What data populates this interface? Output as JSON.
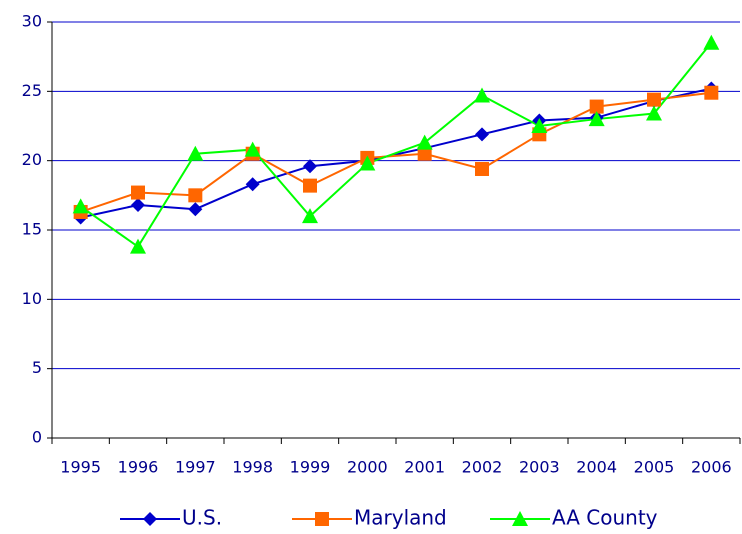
{
  "chart_data": {
    "type": "line",
    "categories": [
      "1995",
      "1996",
      "1997",
      "1998",
      "1999",
      "2000",
      "2001",
      "2002",
      "2003",
      "2004",
      "2005",
      "2006"
    ],
    "series": [
      {
        "name": "U.S.",
        "color": "#0000cc",
        "marker": "diamond",
        "values": [
          15.9,
          16.8,
          16.5,
          18.3,
          19.6,
          20.0,
          20.9,
          21.9,
          22.9,
          23.1,
          24.3,
          25.2
        ]
      },
      {
        "name": "Maryland",
        "color": "#ff6600",
        "marker": "square",
        "values": [
          16.3,
          17.7,
          17.5,
          20.5,
          18.2,
          20.2,
          20.5,
          19.4,
          21.9,
          23.9,
          24.4,
          24.9
        ]
      },
      {
        "name": "AA County",
        "color": "#00ff00",
        "marker": "triangle",
        "values": [
          16.7,
          13.8,
          20.5,
          20.8,
          16.0,
          19.8,
          21.3,
          24.7,
          22.5,
          23.0,
          23.4,
          28.5
        ]
      }
    ],
    "ylim": [
      0,
      30
    ],
    "yticks": [
      0,
      5,
      10,
      15,
      20,
      25,
      30
    ],
    "grid": true,
    "legend": "bottom"
  }
}
